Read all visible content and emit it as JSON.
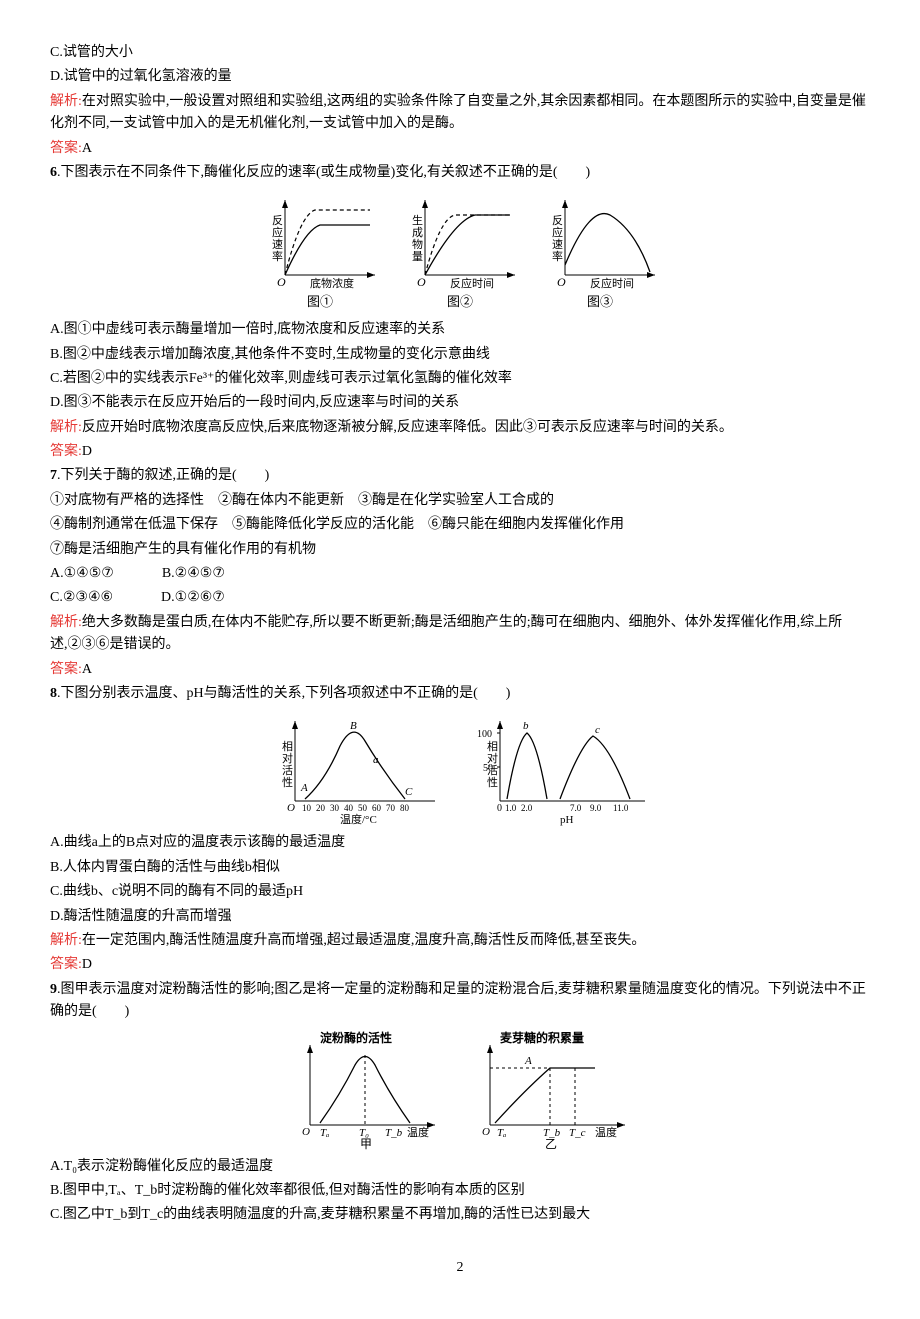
{
  "pre": {
    "optC": "C.试管的大小",
    "optD": "D.试管中的过氧化氢溶液的量",
    "analysis_label": "解析:",
    "analysis": "在对照实验中,一般设置对照组和实验组,这两组的实验条件除了自变量之外,其余因素都相同。在本题图所示的实验中,自变量是催化剂不同,一支试管中加入的是无机催化剂,一支试管中加入的是酶。",
    "answer_label": "答案:",
    "answer": "A"
  },
  "q6": {
    "num": "6",
    "stem": ".下图表示在不同条件下,酶催化反应的速率(或生成物量)变化,有关叙述不正确的是(　　)",
    "charts": [
      {
        "ylabel": "反应速率",
        "xlabel": "底物浓度",
        "caption": "图①",
        "type": "sat"
      },
      {
        "ylabel": "生成物量",
        "xlabel": "反应时间",
        "caption": "图②",
        "type": "sat"
      },
      {
        "ylabel": "反应速率",
        "xlabel": "反应时间",
        "caption": "图③",
        "type": "bell"
      }
    ],
    "chart_style": {
      "axis_color": "#000",
      "solid_color": "#000",
      "dash_color": "#000",
      "bg": "#fff",
      "w": 120,
      "h": 100
    },
    "optA": "A.图①中虚线可表示酶量增加一倍时,底物浓度和反应速率的关系",
    "optB": "B.图②中虚线表示增加酶浓度,其他条件不变时,生成物量的变化示意曲线",
    "optC": "C.若图②中的实线表示Fe³⁺的催化效率,则虚线可表示过氧化氢酶的催化效率",
    "optD": "D.图③不能表示在反应开始后的一段时间内,反应速率与时间的关系",
    "analysis_label": "解析:",
    "analysis": "反应开始时底物浓度高反应快,后来底物逐渐被分解,反应速率降低。因此③可表示反应速率与时间的关系。",
    "answer_label": "答案:",
    "answer": "D"
  },
  "q7": {
    "num": "7",
    "stem": ".下列关于酶的叙述,正确的是(　　)",
    "choices_line1": "①对底物有严格的选择性　②酶在体内不能更新　③酶是在化学实验室人工合成的",
    "choices_line2": "④酶制剂通常在低温下保存　⑤酶能降低化学反应的活化能　⑥酶只能在细胞内发挥催化作用",
    "choices_line3": "⑦酶是活细胞产生的具有催化作用的有机物",
    "optA": "A.①④⑤⑦",
    "optB": "B.②④⑤⑦",
    "optC": "C.②③④⑥",
    "optD": "D.①②⑥⑦",
    "analysis_label": "解析:",
    "analysis": "绝大多数酶是蛋白质,在体内不能贮存,所以要不断更新;酶是活细胞产生的;酶可在细胞内、细胞外、体外发挥催化作用,综上所述,②③⑥是错误的。",
    "answer_label": "答案:",
    "answer": "A"
  },
  "q8": {
    "num": "8",
    "stem": ".下图分别表示温度、pH与酶活性的关系,下列各项叙述中不正确的是(　　)",
    "chart_left": {
      "ylabel": "相对活性",
      "xlabel": "温度/°C",
      "xticks": [
        "10",
        "20",
        "30",
        "40",
        "50",
        "60",
        "70",
        "80"
      ],
      "labels": {
        "A": "A",
        "B": "B",
        "C": "C",
        "a": "a"
      },
      "curve_color": "#000",
      "axis_color": "#000"
    },
    "chart_right": {
      "ylabel": "相对活性",
      "xlabel": "pH",
      "yticks": [
        "50",
        "100"
      ],
      "xticks": [
        "1.0",
        "2.0",
        "7.0",
        "9.0",
        "11.0"
      ],
      "labels": {
        "b": "b",
        "c": "c"
      },
      "curve_color": "#000",
      "axis_color": "#000"
    },
    "optA": "A.曲线a上的B点对应的温度表示该酶的最适温度",
    "optB": "B.人体内胃蛋白酶的活性与曲线b相似",
    "optC": "C.曲线b、c说明不同的酶有不同的最适pH",
    "optD": "D.酶活性随温度的升高而增强",
    "analysis_label": "解析:",
    "analysis": "在一定范围内,酶活性随温度升高而增强,超过最适温度,温度升高,酶活性反而降低,甚至丧失。",
    "answer_label": "答案:",
    "answer": "D"
  },
  "q9": {
    "num": "9",
    "stem": ".图甲表示温度对淀粉酶活性的影响;图乙是将一定量的淀粉酶和足量的淀粉混合后,麦芽糖积累量随温度变化的情况。下列说法中不正确的是(　　)",
    "chart_left": {
      "title": "淀粉酶的活性",
      "xticks": [
        "Tₐ",
        "T₀",
        "T_b"
      ],
      "xright": "温度",
      "caption": "甲",
      "axis_color": "#000"
    },
    "chart_right": {
      "title": "麦芽糖的积累量",
      "pointA": "A",
      "xticks": [
        "Tₐ",
        "T_b",
        "T_c"
      ],
      "xright": "温度",
      "caption": "乙",
      "axis_color": "#000"
    },
    "optA": "A.T₀表示淀粉酶催化反应的最适温度",
    "optB": "B.图甲中,Tₐ、T_b时淀粉酶的催化效率都很低,但对酶活性的影响有本质的区别",
    "optC": "C.图乙中T_b到T_c的曲线表明随温度的升高,麦芽糖积累量不再增加,酶的活性已达到最大"
  },
  "page_number": "2"
}
